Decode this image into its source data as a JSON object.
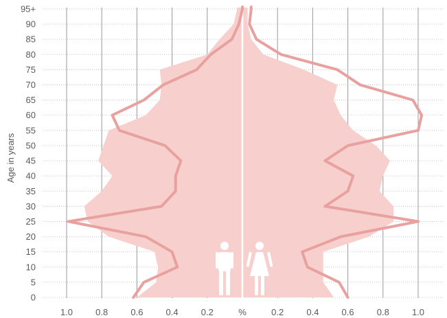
{
  "chart_data": {
    "type": "area",
    "title": "",
    "ylabel": "Age in years",
    "xlabel": "%",
    "x_ticks_left": [
      "1.0",
      "0.8",
      "0.6",
      "0.4",
      "0.2"
    ],
    "x_center_label": "%",
    "x_ticks_right": [
      "0.2",
      "0.4",
      "0.6",
      "0.8",
      "1.0"
    ],
    "x_tick_values_left": [
      1.0,
      0.8,
      0.6,
      0.4,
      0.2
    ],
    "x_tick_values_right": [
      0.2,
      0.4,
      0.6,
      0.8,
      1.0
    ],
    "xlim": [
      -1.1,
      1.1
    ],
    "y_ticks": [
      "0",
      "5",
      "10",
      "15",
      "20",
      "25",
      "30",
      "35",
      "40",
      "45",
      "50",
      "55",
      "60",
      "65",
      "70",
      "75",
      "80",
      "85",
      "90",
      "95+"
    ],
    "ylim": [
      0,
      95
    ],
    "grid": "dotted",
    "age": [
      0,
      5,
      10,
      15,
      20,
      25,
      30,
      35,
      40,
      45,
      50,
      55,
      60,
      65,
      70,
      75,
      80,
      85,
      90,
      95
    ],
    "series": [
      {
        "role": "area_male",
        "values": [
          0.6,
          0.49,
          0.48,
          0.5,
          0.76,
          0.88,
          0.9,
          0.8,
          0.74,
          0.82,
          0.79,
          0.76,
          0.55,
          0.47,
          0.46,
          0.47,
          0.2,
          0.13,
          0.05,
          0.03
        ]
      },
      {
        "role": "area_female",
        "values": [
          0.52,
          0.46,
          0.46,
          0.46,
          0.72,
          0.86,
          0.86,
          0.78,
          0.8,
          0.84,
          0.76,
          0.63,
          0.56,
          0.52,
          0.54,
          0.35,
          0.12,
          0.05,
          0.03,
          0.03
        ]
      },
      {
        "role": "line_male",
        "values": [
          0.62,
          0.56,
          0.37,
          0.4,
          0.55,
          0.99,
          0.46,
          0.38,
          0.38,
          0.35,
          0.44,
          0.7,
          0.74,
          0.56,
          0.45,
          0.26,
          0.18,
          0.06,
          0.02,
          0.0
        ]
      },
      {
        "role": "line_female",
        "values": [
          0.6,
          0.55,
          0.37,
          0.34,
          0.56,
          1.0,
          0.47,
          0.6,
          0.63,
          0.47,
          0.6,
          1.0,
          1.02,
          0.97,
          0.67,
          0.54,
          0.22,
          0.08,
          0.04,
          0.05
        ]
      }
    ],
    "colors": {
      "area": "#f7d0ce",
      "line": "#e8a19f",
      "grid_vertical": "#999999",
      "grid_horizontal": "#c8c8c8",
      "center_line": "#ffffff",
      "text": "#5a5a5a"
    },
    "icons": [
      "male-icon",
      "female-icon"
    ]
  }
}
